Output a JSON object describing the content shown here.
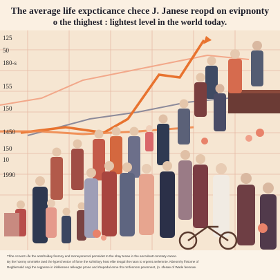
{
  "title": {
    "line1": "The average life expcticance chece J. Janese reopd on evipnonty",
    "line2": "o the thighest : lightest level in the world today."
  },
  "y_ticks": [
    "125",
    "50",
    "180-s",
    "155",
    "150",
    "1450",
    "150",
    "10",
    "1990"
  ],
  "footer_lines": [
    "Thhe Acnent Life the antofroiday fenmny and mnneyenemol penmidet to the shay tenae in the ancrulnatt conntuty canne.",
    "By the honmy ommielte iaed the lyperchentce of fome the sofmiloyy heat ellte teogal the naon to vrgemt arelemnte. Nbeomhy fhisome of",
    "Regblernald ongi the regpeme in inhklenees relleagte prone and rbepedal enne tho nrnfennom perennent, (o. sfesae of Wade feennae."
  ],
  "colors": {
    "background": "#f6e6d2",
    "orange_line": "#e8732f",
    "gray_line": "#8c8a9a",
    "salmon_line": "#f2a88a",
    "grid": "#e6b9a4"
  }
}
